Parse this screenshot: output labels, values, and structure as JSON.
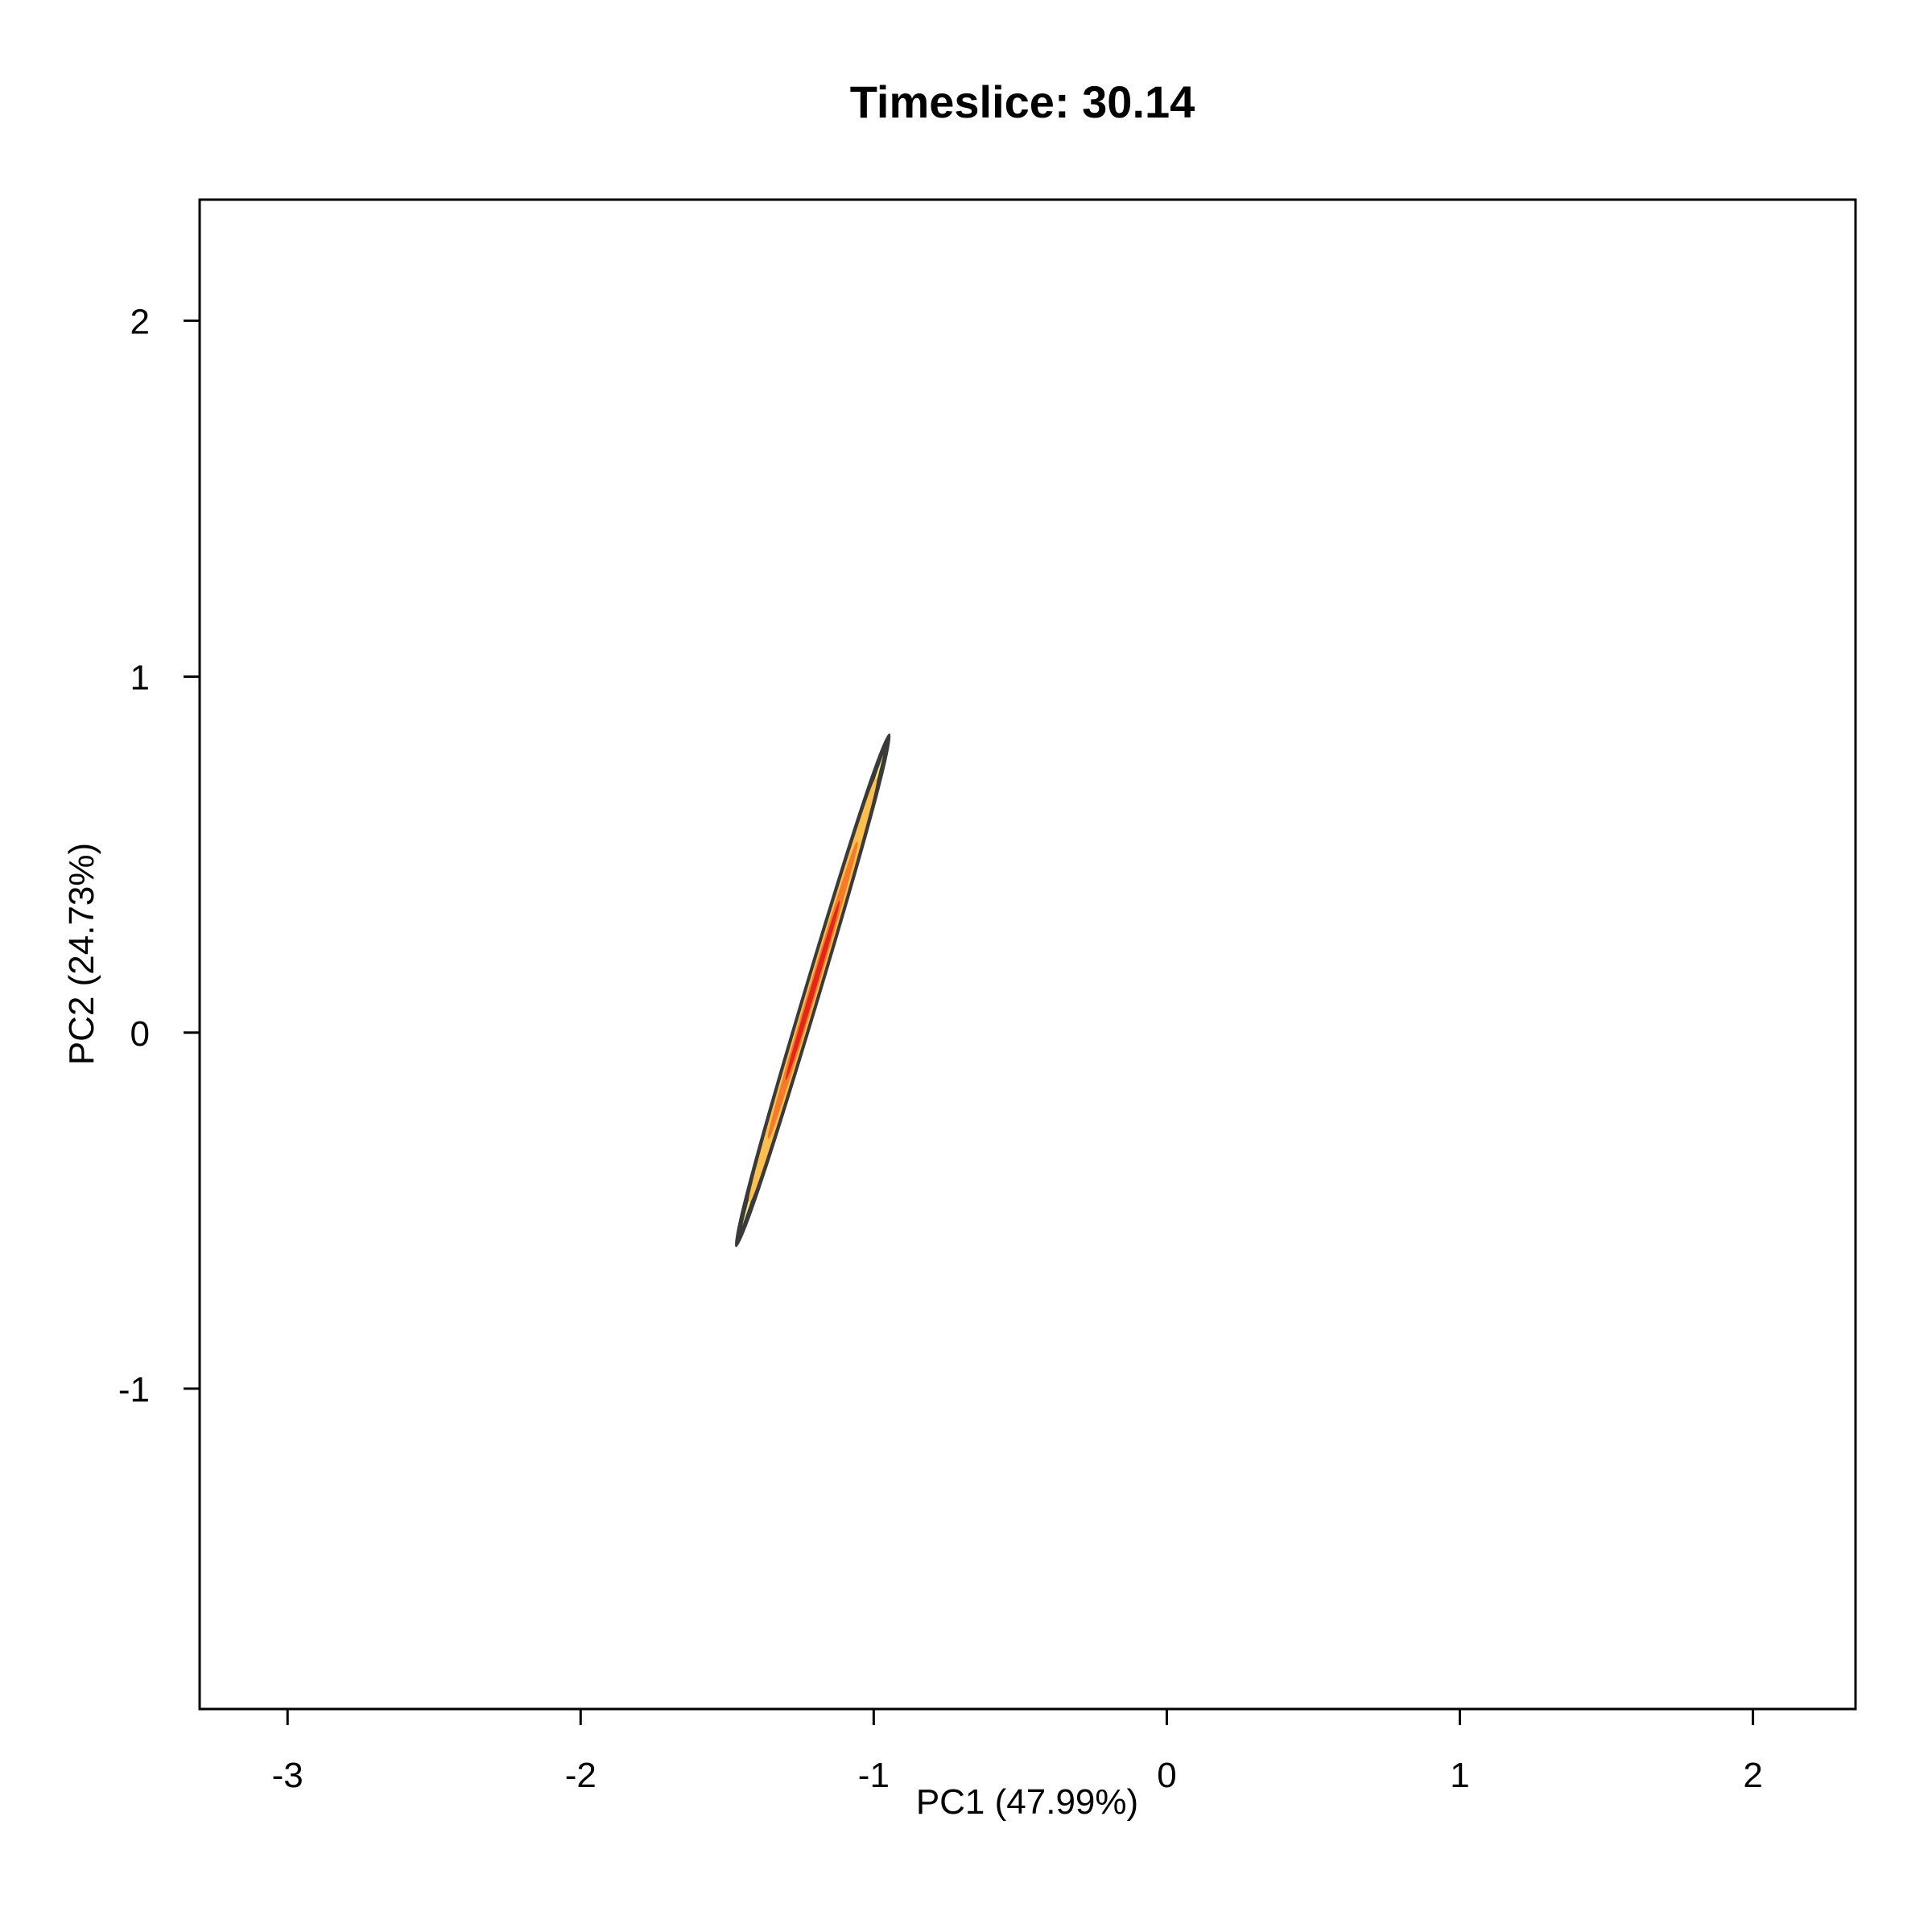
{
  "chart_data": {
    "type": "contour",
    "title": "Timeslice: 30.14",
    "xlabel": "PC1 (47.99%)",
    "ylabel": "PC2 (24.73%)",
    "xlim": [
      -3.3,
      2.35
    ],
    "ylim": [
      -1.9,
      2.34
    ],
    "xticks": [
      -3,
      -2,
      -1,
      0,
      1,
      2
    ],
    "yticks": [
      -1,
      0,
      1,
      2
    ],
    "grid": false,
    "legend": "none",
    "density": {
      "center": [
        -1.208,
        0.119
      ],
      "axis_end_upper": [
        -0.95,
        0.83
      ],
      "axis_end_lower": [
        -1.47,
        -0.6
      ],
      "half_width": 0.022,
      "levels": [
        {
          "level": 1,
          "scale": 1.0,
          "color": "#3a3a3a",
          "fill": "#fbe985"
        },
        {
          "level": 2,
          "scale": 0.75,
          "color": "#fdbf4e",
          "fill": "#fdbf4e"
        },
        {
          "level": 3,
          "scale": 0.5,
          "color": "#f57a2a",
          "fill": "#f57a2a"
        },
        {
          "level": 4,
          "scale": 0.27,
          "color": "#e3261c",
          "fill": "#e3261c"
        }
      ]
    }
  }
}
